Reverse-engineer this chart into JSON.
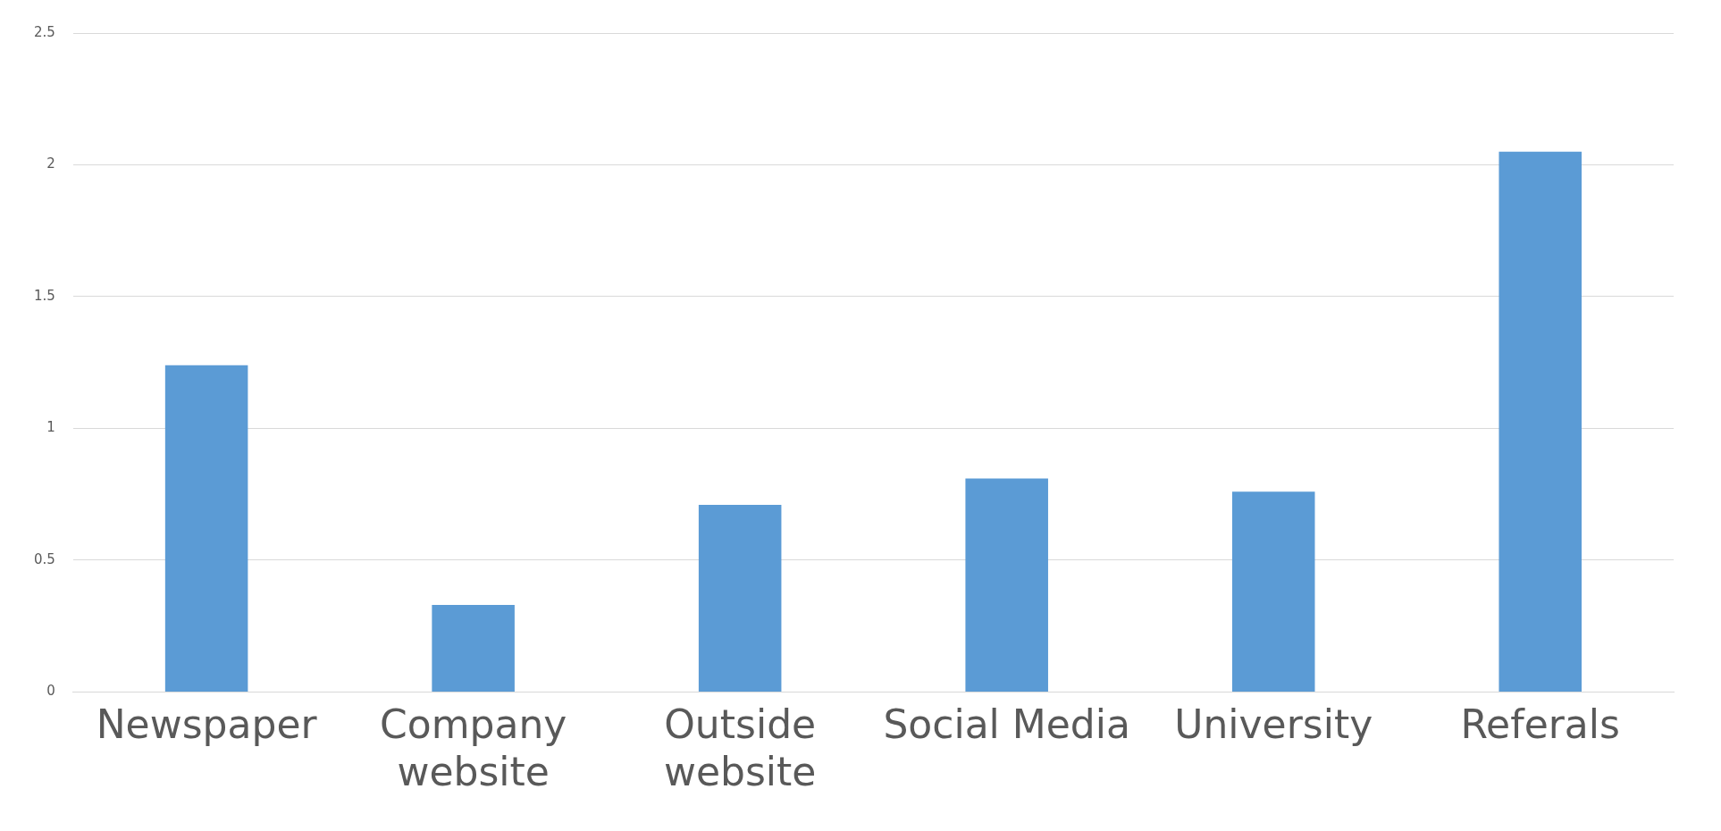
{
  "chart_data": {
    "type": "bar",
    "categories": [
      "Newspaper",
      "Company website",
      "Outside website",
      "Social Media",
      "University",
      "Referals"
    ],
    "values": [
      1.24,
      0.33,
      0.71,
      0.81,
      0.76,
      2.05
    ],
    "color": "#5b9bd5",
    "ylim": [
      0,
      2.5
    ],
    "yticks": [
      0,
      0.5,
      1,
      1.5,
      2,
      2.5
    ],
    "grid": "y",
    "legend": false
  }
}
